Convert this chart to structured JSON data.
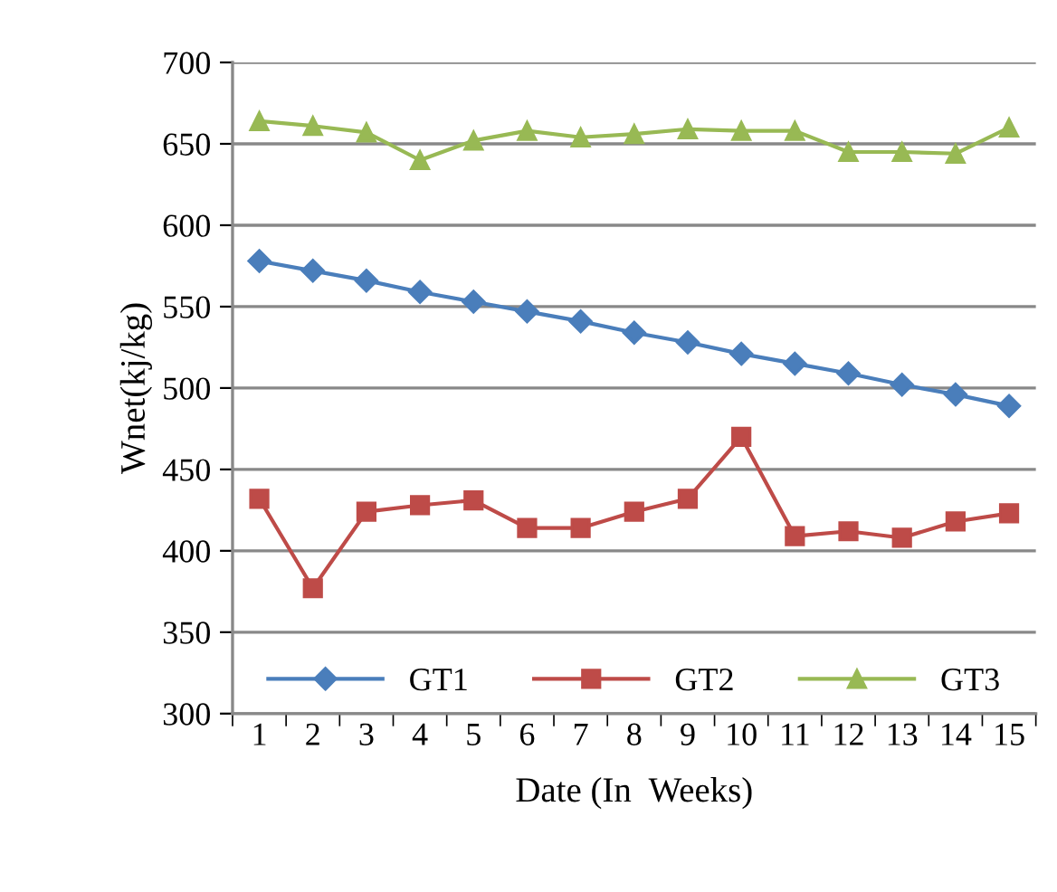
{
  "chart_data": {
    "type": "line",
    "xlabel": "Date (In  Weeks)",
    "ylabel": "Wnet(kj/kg)",
    "categories": [
      "1",
      "2",
      "3",
      "4",
      "5",
      "6",
      "7",
      "8",
      "9",
      "10",
      "11",
      "12",
      "13",
      "14",
      "15"
    ],
    "series": [
      {
        "name": "GT1",
        "color": "#4a7ebb",
        "marker": "diamond",
        "values": [
          578,
          572,
          566,
          559,
          553,
          547,
          541,
          534,
          528,
          521,
          515,
          509,
          502,
          496,
          489
        ]
      },
      {
        "name": "GT2",
        "color": "#be4b48",
        "marker": "square",
        "values": [
          432,
          377,
          424,
          428,
          431,
          414,
          414,
          424,
          432,
          470,
          409,
          412,
          408,
          418,
          423
        ]
      },
      {
        "name": "GT3",
        "color": "#98b954",
        "marker": "triangle",
        "values": [
          664,
          661,
          657,
          640,
          652,
          658,
          654,
          656,
          659,
          658,
          658,
          645,
          645,
          644,
          660
        ]
      }
    ],
    "ylim": [
      300,
      700
    ],
    "yticks": [
      300,
      350,
      400,
      450,
      500,
      550,
      600,
      650,
      700
    ],
    "grid": "y",
    "legend": "bottom"
  }
}
